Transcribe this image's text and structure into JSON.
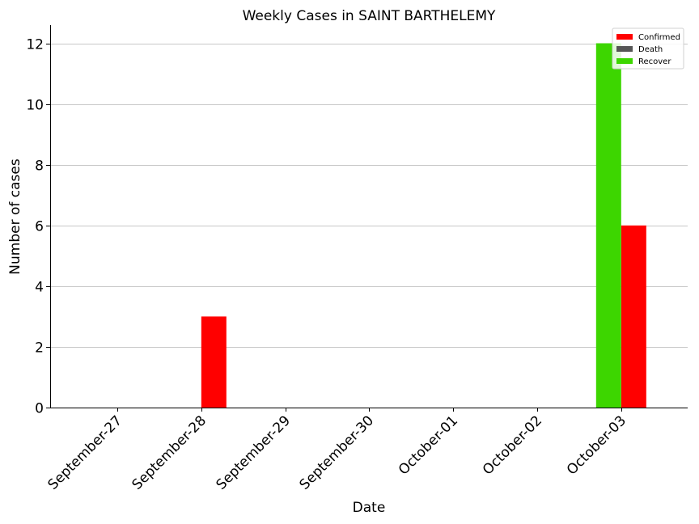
{
  "chart_data": {
    "type": "bar",
    "title": "Weekly Cases in SAINT BARTHELEMY",
    "xlabel": "Date",
    "ylabel": "Number of cases",
    "categories": [
      "September-27",
      "September-28",
      "September-29",
      "September-30",
      "October-01",
      "October-02",
      "October-03"
    ],
    "series": [
      {
        "name": "Confirmed",
        "color": "#ff0000",
        "values": [
          0,
          3,
          0,
          0,
          0,
          0,
          6
        ]
      },
      {
        "name": "Death",
        "color": "#555555",
        "values": [
          0,
          0,
          0,
          0,
          0,
          0,
          0
        ]
      },
      {
        "name": "Recover",
        "color": "#3dd600",
        "values": [
          0,
          0,
          0,
          0,
          0,
          0,
          12
        ]
      }
    ],
    "ylim": [
      0,
      12.6
    ],
    "yticks": [
      0,
      2,
      4,
      6,
      8,
      10,
      12
    ],
    "grid": "y",
    "legend_position": "top-right"
  }
}
